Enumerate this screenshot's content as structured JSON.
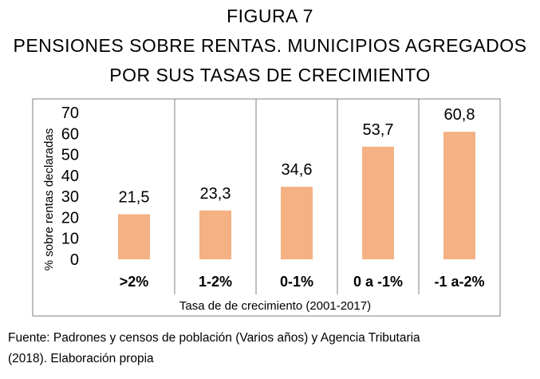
{
  "figure": {
    "label": "FIGURA 7",
    "title_line_1": "PENSIONES SOBRE RENTAS. MUNICIPIOS AGREGADOS",
    "title_line_2": "POR SUS TASAS DE CRECIMIENTO"
  },
  "source": {
    "line_1": "Fuente: Padrones y censos de población (Varios años) y Agencia Tributaria",
    "line_2": "(2018). Elaboración propia"
  },
  "chart_data": {
    "type": "bar",
    "title": "PENSIONES SOBRE RENTAS. MUNICIPIOS AGREGADOS POR SUS TASAS DE CRECIMIENTO",
    "xlabel": "Tasa de de crecimiento (2001-2017)",
    "ylabel": "% sobre rentas declaradas",
    "categories": [
      ">2%",
      "1-2%",
      "0-1%",
      "0 a -1%",
      "-1 a-2%"
    ],
    "values": [
      21.5,
      23.3,
      34.6,
      53.7,
      60.8
    ],
    "value_labels": [
      "21,5",
      "23,3",
      "34,6",
      "53,7",
      "60,8"
    ],
    "y_ticks": [
      "0",
      "10",
      "20",
      "30",
      "40",
      "50",
      "60",
      "70"
    ],
    "ylim": [
      0,
      70
    ],
    "bar_color": "#F4B183",
    "frame_color": "#808080",
    "grid": false,
    "category_separators": true,
    "legend": "none"
  }
}
